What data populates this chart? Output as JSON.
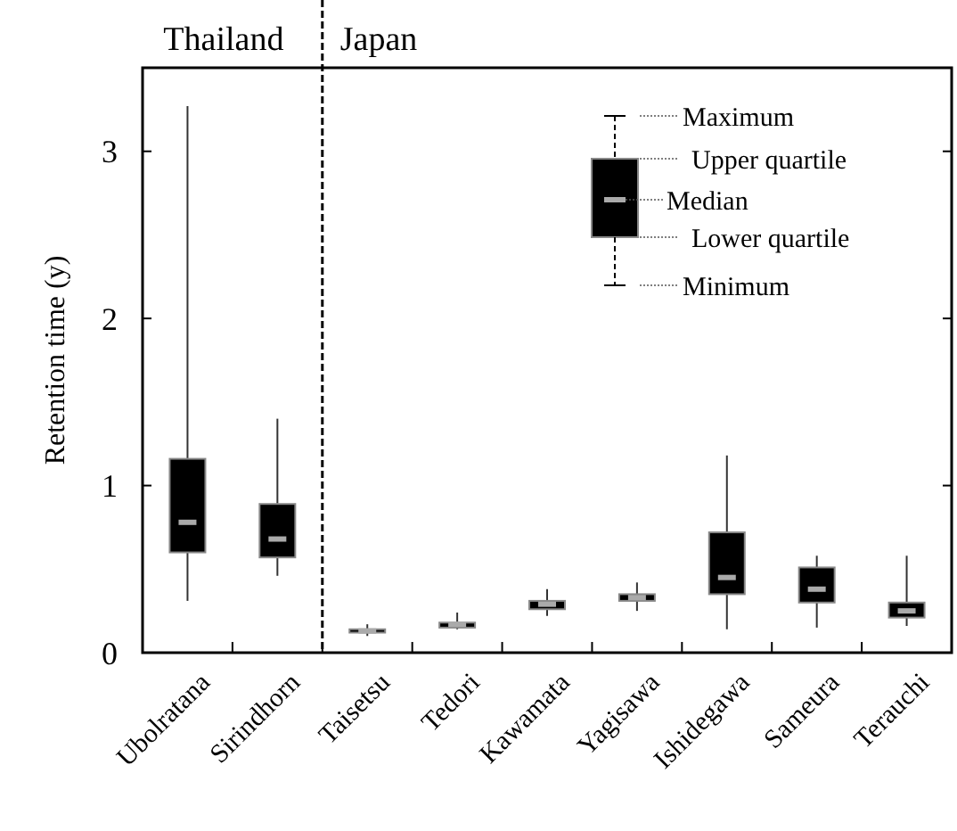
{
  "chart_data": {
    "type": "box",
    "ylabel": "Retention time (y)",
    "categories": [
      "Ubolratana",
      "Sirindhorn",
      "Taisetsu",
      "Tedori",
      "Kawamata",
      "Yagisawa",
      "Ishidegawa",
      "Sameura",
      "Terauchi"
    ],
    "boxes": [
      {
        "low": 0.31,
        "q1": 0.6,
        "median": 0.78,
        "q3": 1.16,
        "high": 3.27
      },
      {
        "low": 0.46,
        "q1": 0.57,
        "median": 0.68,
        "q3": 0.89,
        "high": 1.4
      },
      {
        "low": 0.1,
        "q1": 0.12,
        "median": 0.13,
        "q3": 0.14,
        "high": 0.17
      },
      {
        "low": 0.14,
        "q1": 0.15,
        "median": 0.17,
        "q3": 0.18,
        "high": 0.24
      },
      {
        "low": 0.22,
        "q1": 0.26,
        "median": 0.29,
        "q3": 0.31,
        "high": 0.38
      },
      {
        "low": 0.25,
        "q1": 0.31,
        "median": 0.33,
        "q3": 0.35,
        "high": 0.42
      },
      {
        "low": 0.14,
        "q1": 0.35,
        "median": 0.45,
        "q3": 0.72,
        "high": 1.18
      },
      {
        "low": 0.15,
        "q1": 0.3,
        "median": 0.38,
        "q3": 0.51,
        "high": 0.58
      },
      {
        "low": 0.16,
        "q1": 0.21,
        "median": 0.25,
        "q3": 0.3,
        "high": 0.58
      }
    ],
    "color": "#000000",
    "ylim": [
      0,
      3.5
    ],
    "yticks": [
      0,
      1,
      2,
      3
    ],
    "annotations": [
      "Thailand",
      "Japan",
      "Maximum",
      "Upper quartile",
      "Median",
      "Lower quartile",
      "Minimum"
    ]
  }
}
